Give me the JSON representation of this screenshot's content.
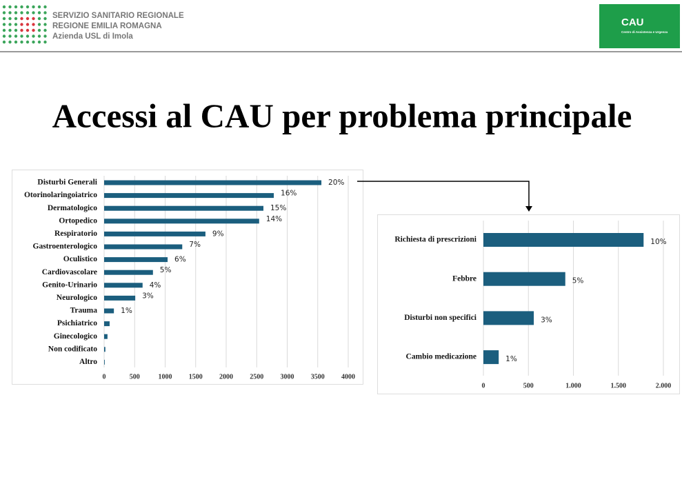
{
  "header": {
    "org_lines": [
      "SERVIZIO SANITARIO REGIONALE",
      "REGIONE EMILIA ROMAGNA",
      "Azienda USL di Imola"
    ],
    "badge_title": "CAU",
    "badge_subtitle": "Centro di Assistenza e Urgenza"
  },
  "title": "Accessi al CAU per problema principale",
  "chart_data": [
    {
      "type": "bar",
      "orientation": "horizontal",
      "color": "#1b5e7e",
      "grid": true,
      "categories": [
        "Disturbi Generali",
        "Otorinolaringoiatrico",
        "Dermatologico",
        "Ortopedico",
        "Respiratorio",
        "Gastroenterologico",
        "Oculistico",
        "Cardiovascolare",
        "Genito-Urinario",
        "Neurologico",
        "Trauma",
        "Psichiatrico",
        "Ginecologico",
        "Non codificato",
        "Altro"
      ],
      "values": [
        3560,
        2780,
        2610,
        2540,
        1660,
        1280,
        1040,
        800,
        630,
        510,
        160,
        90,
        55,
        20,
        10
      ],
      "labels": [
        "20%",
        "16%",
        "15%",
        "14%",
        "9%",
        "7%",
        "6%",
        "5%",
        "4%",
        "3%",
        "1%",
        null,
        null,
        null,
        null
      ],
      "xlim": [
        0,
        4000
      ],
      "xticks": [
        0,
        500,
        1000,
        1500,
        2000,
        2500,
        3000,
        3500,
        4000
      ]
    },
    {
      "type": "bar",
      "orientation": "horizontal",
      "color": "#1b5e7e",
      "grid": true,
      "categories": [
        "Richiesta di prescrizioni",
        "Febbre",
        "Disturbi non specifici",
        "Cambio medicazione"
      ],
      "values": [
        1780,
        910,
        560,
        170
      ],
      "labels": [
        "10%",
        "5%",
        "3%",
        "1%"
      ],
      "xlim": [
        0,
        2000
      ],
      "xticks": [
        0,
        500,
        {
          "value": 1000,
          "label": "1.000"
        },
        {
          "value": 1500,
          "label": "1.500"
        },
        {
          "value": 2000,
          "label": "2.000"
        }
      ]
    }
  ]
}
